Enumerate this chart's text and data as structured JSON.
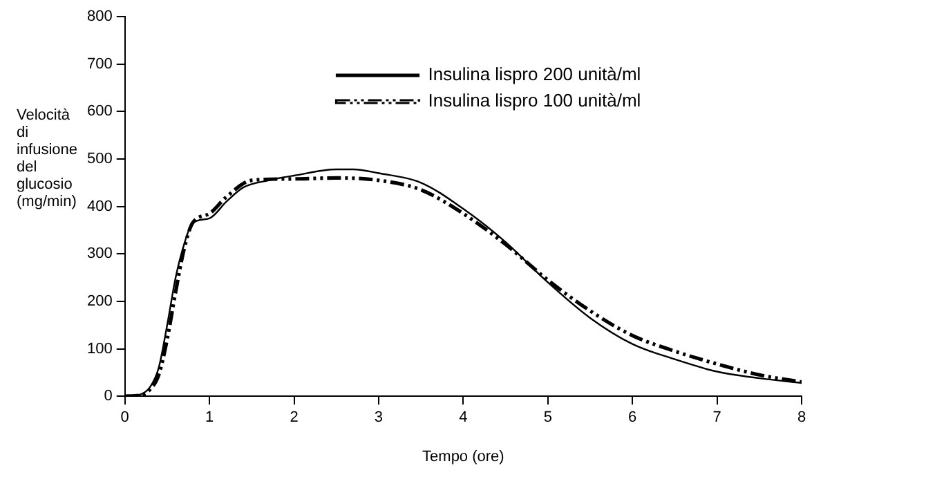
{
  "chart_data": {
    "type": "line",
    "xlabel": "Tempo (ore)",
    "ylabel": "Velocità di infusione del glucosio (mg/min)",
    "xlim": [
      0,
      8
    ],
    "ylim": [
      0,
      800
    ],
    "xticks": [
      0,
      1,
      2,
      3,
      4,
      5,
      6,
      7,
      8
    ],
    "yticks": [
      0,
      100,
      200,
      300,
      400,
      500,
      600,
      700,
      800
    ],
    "grid": false,
    "legend": "top",
    "marker": "none",
    "series": [
      {
        "name": "Insulina lispro 200 unità/ml",
        "color": "#000000",
        "line_style": "solid",
        "x": [
          0,
          0.2,
          0.3,
          0.4,
          0.5,
          0.6,
          0.7,
          0.8,
          1.0,
          1.2,
          1.4,
          1.7,
          2.0,
          2.5,
          2.7,
          3.0,
          3.5,
          4.0,
          4.5,
          5.0,
          5.5,
          6.0,
          6.5,
          7.0,
          7.5,
          8.0
        ],
        "values": [
          0,
          5,
          20,
          60,
          150,
          250,
          320,
          365,
          375,
          410,
          440,
          455,
          465,
          478,
          478,
          470,
          450,
          395,
          325,
          240,
          165,
          110,
          78,
          52,
          38,
          28
        ]
      },
      {
        "name": "Insulina lispro 100 unità/ml",
        "color": "#000000",
        "line_style": "dashed",
        "x": [
          0,
          0.2,
          0.3,
          0.4,
          0.5,
          0.6,
          0.7,
          0.8,
          1.0,
          1.2,
          1.5,
          2.0,
          2.5,
          3.0,
          3.5,
          4.0,
          4.5,
          5.0,
          5.5,
          6.0,
          6.5,
          7.0,
          7.5,
          8.0
        ],
        "values": [
          0,
          3,
          15,
          45,
          120,
          220,
          310,
          365,
          385,
          420,
          455,
          458,
          460,
          455,
          435,
          385,
          320,
          245,
          180,
          128,
          95,
          68,
          45,
          30
        ]
      }
    ]
  }
}
